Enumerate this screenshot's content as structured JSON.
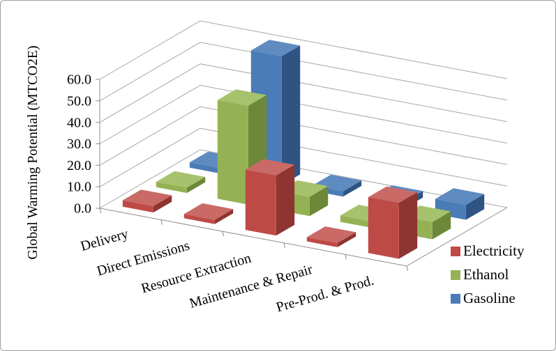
{
  "chart_data": {
    "type": "bar",
    "subtype": "3d-clustered-column",
    "title": "",
    "xlabel": "",
    "ylabel": "Global Warming Potential (MTCO2E)",
    "ylim": [
      0,
      60
    ],
    "ytick_step": 10,
    "ytick_labels": [
      "0.0",
      "10.0",
      "20.0",
      "30.0",
      "40.0",
      "50.0",
      "60.0"
    ],
    "grid": true,
    "categories": [
      "Delivery",
      "Direct Emissions",
      "Resource Extraction",
      "Maintenance & Repair",
      "Pre-Prod. & Prod."
    ],
    "series": [
      {
        "name": "Electricity",
        "depth_row": "front",
        "values": [
          3.0,
          2.0,
          28.0,
          2.0,
          26.0
        ],
        "color": "#BE4A46",
        "color_top": "#C96A66",
        "color_side": "#8E3532"
      },
      {
        "name": "Ethanol",
        "depth_row": "middle",
        "values": [
          2.5,
          46.0,
          9.0,
          3.0,
          8.0
        ],
        "color": "#94B254",
        "color_top": "#A7C26C",
        "color_side": "#6C8838"
      },
      {
        "name": "Gasoline",
        "depth_row": "back",
        "values": [
          2.5,
          60.0,
          2.5,
          3.0,
          7.0
        ],
        "color": "#4A7CB7",
        "color_top": "#5E8BC0",
        "color_side": "#2F5483"
      }
    ],
    "legend": {
      "position": "right",
      "labels": [
        "Electricity",
        "Ethanol",
        "Gasoline"
      ]
    },
    "axis_color": "#8C8C8C",
    "gridline_color": "#A6A6A6"
  }
}
